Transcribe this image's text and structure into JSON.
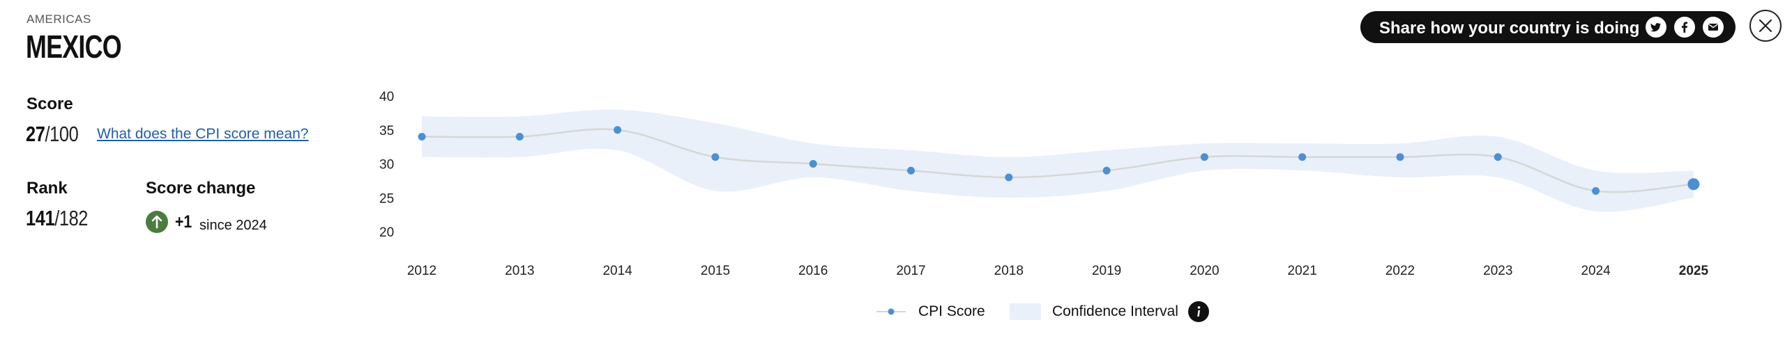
{
  "header": {
    "region": "AMERICAS",
    "country": "MEXICO"
  },
  "score": {
    "label": "Score",
    "value": "27",
    "max": "/100",
    "link_text": "What does the CPI score mean?"
  },
  "rank": {
    "label": "Rank",
    "value": "141",
    "total": "/182"
  },
  "score_change": {
    "label": "Score change",
    "value": "+1",
    "since": "since 2024",
    "direction_icon": "arrow-up-icon",
    "color": "#4a7c3f"
  },
  "share": {
    "label": "Share how your country is doing",
    "buttons": [
      {
        "name": "twitter-icon"
      },
      {
        "name": "facebook-icon"
      },
      {
        "name": "email-icon"
      }
    ]
  },
  "close_icon": "close-icon",
  "legend": {
    "score_label": "CPI Score",
    "ci_label": "Confidence Interval",
    "info_icon": "info-icon"
  },
  "colors": {
    "point": "#4a90d2",
    "line": "#d6d6d6",
    "band": "#eaf0f9",
    "accent_text": "#1f5fa8"
  },
  "chart_data": {
    "type": "line",
    "x": [
      2012,
      2013,
      2014,
      2015,
      2016,
      2017,
      2018,
      2019,
      2020,
      2021,
      2022,
      2023,
      2024,
      2025
    ],
    "series": [
      {
        "name": "CPI Score",
        "values": [
          34,
          34,
          35,
          31,
          30,
          29,
          28,
          29,
          31,
          31,
          31,
          31,
          26,
          27
        ]
      }
    ],
    "confidence_interval": {
      "lower": [
        31,
        31,
        32,
        26,
        28,
        26,
        25,
        26,
        29,
        29,
        28,
        28,
        23,
        25
      ],
      "upper": [
        37,
        37,
        38,
        36,
        33,
        32,
        31,
        32,
        33,
        33,
        33,
        34,
        29,
        29
      ]
    },
    "y_ticks": [
      20,
      25,
      30,
      35,
      40
    ],
    "ylim": [
      20,
      40
    ],
    "highlight_x": 2025,
    "grid": false,
    "legend_position": "bottom"
  }
}
